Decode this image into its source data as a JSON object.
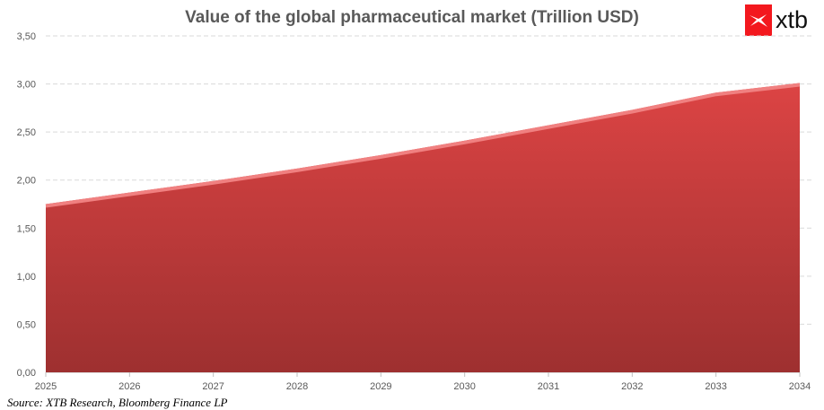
{
  "chart_data": {
    "type": "area",
    "title": "Value of the global pharmaceutical market (Trillion USD)",
    "categories": [
      "2025",
      "2026",
      "2027",
      "2028",
      "2029",
      "2030",
      "2031",
      "2032",
      "2033",
      "2034"
    ],
    "values": [
      1.75,
      1.87,
      1.99,
      2.12,
      2.26,
      2.41,
      2.57,
      2.73,
      2.91,
      3.01
    ],
    "ylim": [
      0,
      3.5
    ],
    "yticks": [
      "0,00",
      "0,50",
      "1,00",
      "1,50",
      "2,00",
      "2,50",
      "3,00",
      "3,50"
    ],
    "grid": true,
    "legend": "none",
    "colors": {
      "fill_top": "#dc4444",
      "fill_bottom": "#9e3030",
      "edge": "#f08080"
    }
  },
  "logo": {
    "text": "xtb",
    "color": "#f3181e"
  },
  "source": "Source: XTB Research, Bloomberg Finance LP"
}
